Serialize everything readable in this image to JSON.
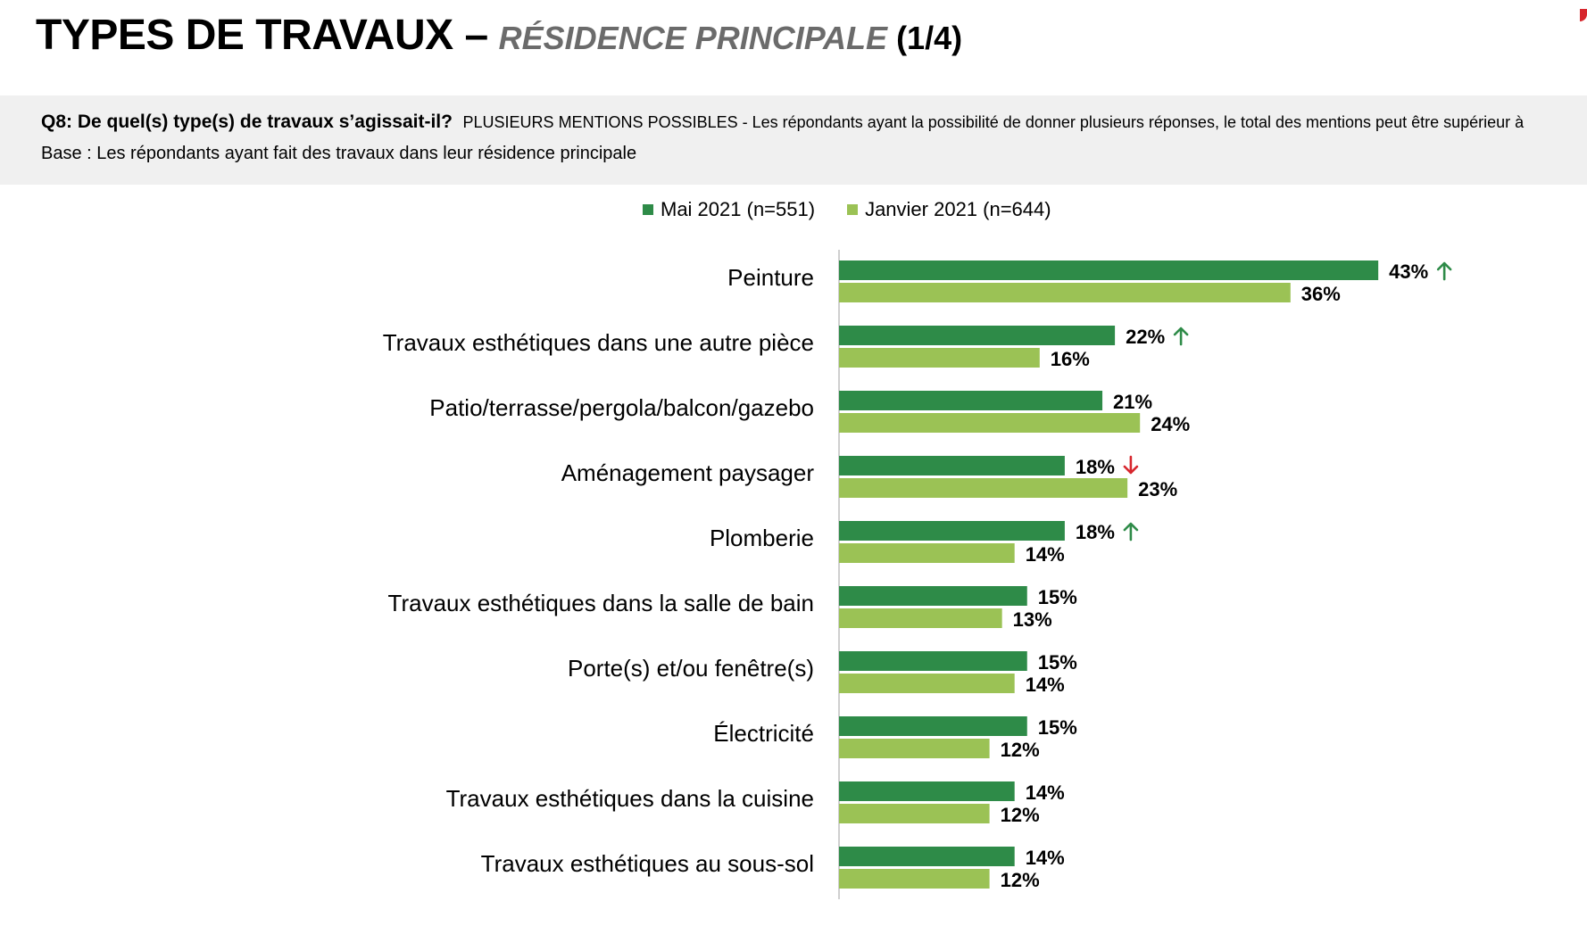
{
  "header": {
    "title": "TYPES DE TRAVAUX –",
    "subtitle": "RÉSIDENCE PRINCIPALE",
    "page": "(1/4)"
  },
  "question": {
    "label": "Q8: De quel(s) type(s) de travaux s’agissait-il?",
    "note": "PLUSIEURS MENTIONS POSSIBLES - Les répondants ayant la possibilité de donner plusieurs réponses, le total des mentions peut être supérieur à",
    "base": "Base : Les répondants ayant fait des travaux dans leur résidence principale"
  },
  "colors": {
    "mai": "#2e8b48",
    "janvier": "#9bc255",
    "up": "#2e8b48",
    "down": "#d7262d"
  },
  "chart_data": {
    "type": "bar",
    "orientation": "horizontal",
    "categories": [
      "Peinture",
      "Travaux esthétiques dans une autre pièce",
      "Patio/terrasse/pergola/balcon/gazebo",
      "Aménagement paysager",
      "Plomberie",
      "Travaux esthétiques dans la salle de bain",
      "Porte(s) et/ou fenêtre(s)",
      "Électricité",
      "Travaux esthétiques dans la cuisine",
      "Travaux esthétiques au sous-sol"
    ],
    "series": [
      {
        "name": "Mai 2021 (n=551)",
        "values": [
          43,
          22,
          21,
          18,
          18,
          15,
          15,
          15,
          14,
          14
        ],
        "labels": [
          "43%",
          "22%",
          "21%",
          "18%",
          "18%",
          "15%",
          "15%",
          "15%",
          "14%",
          "14%"
        ],
        "trend": [
          "up",
          "up",
          "",
          "down",
          "up",
          "",
          "",
          "",
          "",
          ""
        ]
      },
      {
        "name": "Janvier 2021 (n=644)",
        "values": [
          36,
          16,
          24,
          23,
          14,
          13,
          14,
          12,
          12,
          12
        ],
        "labels": [
          "36%",
          "16%",
          "24%",
          "23%",
          "14%",
          "13%",
          "14%",
          "12%",
          "12%",
          "12%"
        ]
      }
    ],
    "unit": "%",
    "xlim": [
      0,
      50
    ],
    "grid": false,
    "legend_position": "top"
  }
}
